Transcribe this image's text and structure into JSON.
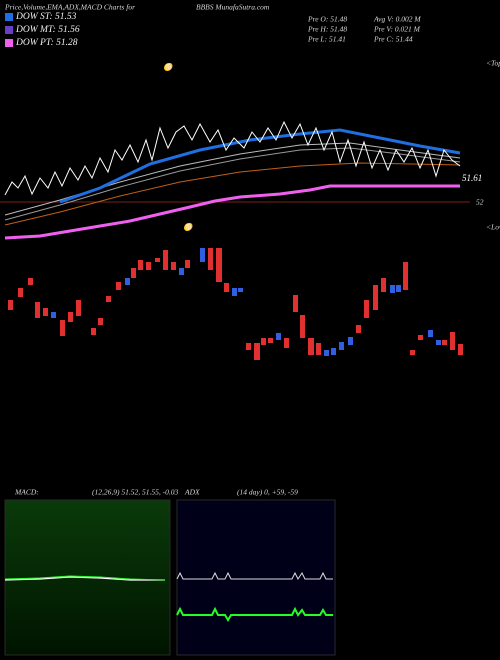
{
  "header": {
    "title": "Price,Volume,EMA,ADX,MACD Charts for",
    "site": "BBBS MunafaSutra.com"
  },
  "legend": [
    {
      "name": "DOW ST: 51.53",
      "color": "#1f6fe0"
    },
    {
      "name": "DOW MT: 51.56",
      "color": "#6a3fc8"
    },
    {
      "name": "DOW PT: 51.28",
      "color": "#f060f0"
    }
  ],
  "stats": [
    "Pre  O: 51.48",
    "Avg V: 0.002  M",
    "Pre  H: 51.48",
    "Pre  V: 0.021 M",
    "Pre  L: 51.41",
    "Pre  C: 51.44"
  ],
  "price_labels": [
    "51.61",
    "52"
  ],
  "markers": [
    "<Tops",
    "<Lows"
  ],
  "macd": {
    "label": "MACD:",
    "params": "(12,26,9) 51.52, 51.55, -0.03"
  },
  "adx": {
    "label": "ADX",
    "params": "(14  day) 0, +59, -59"
  }
}
